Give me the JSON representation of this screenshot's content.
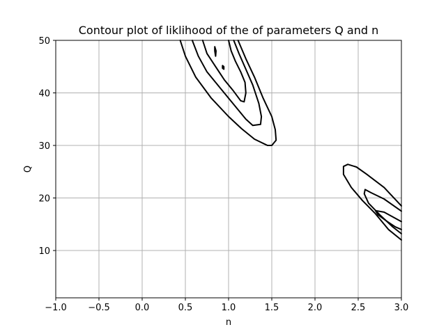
{
  "chart_data": {
    "type": "contour",
    "title": "Contour plot of liklihood of the of parameters Q and n",
    "xlabel": "n",
    "ylabel": "Q",
    "xlim": [
      -1.0,
      3.0
    ],
    "ylim": [
      1.0,
      50.0
    ],
    "xticks": [
      -1.0,
      -0.5,
      0.0,
      0.5,
      1.0,
      1.5,
      2.0,
      2.5,
      3.0
    ],
    "xtick_labels": [
      "−1.0",
      "−0.5",
      "0.0",
      "0.5",
      "1.0",
      "1.5",
      "2.0",
      "2.5",
      "3.0"
    ],
    "yticks": [
      10,
      20,
      30,
      40,
      50
    ],
    "ytick_labels": [
      "10",
      "20",
      "30",
      "40",
      "50"
    ],
    "grid": true,
    "contours": [
      {
        "closed": false,
        "points": [
          [
            0.44,
            50.0
          ],
          [
            0.5,
            47.0
          ],
          [
            0.62,
            43.0
          ],
          [
            0.8,
            39.0
          ],
          [
            1.0,
            35.5
          ],
          [
            1.15,
            33.2
          ],
          [
            1.3,
            31.2
          ],
          [
            1.45,
            30.0
          ],
          [
            1.5,
            30.0
          ],
          [
            1.55,
            31.0
          ],
          [
            1.54,
            33.0
          ],
          [
            1.5,
            35.5
          ],
          [
            1.4,
            39.0
          ],
          [
            1.3,
            43.0
          ],
          [
            1.2,
            46.5
          ],
          [
            1.11,
            50.0
          ]
        ]
      },
      {
        "closed": false,
        "points": [
          [
            0.58,
            50.0
          ],
          [
            0.65,
            47.0
          ],
          [
            0.75,
            44.0
          ],
          [
            0.9,
            41.0
          ],
          [
            1.05,
            38.0
          ],
          [
            1.2,
            35.0
          ],
          [
            1.28,
            33.8
          ],
          [
            1.37,
            34.0
          ],
          [
            1.38,
            35.5
          ],
          [
            1.35,
            38.0
          ],
          [
            1.28,
            41.5
          ],
          [
            1.2,
            44.5
          ],
          [
            1.12,
            47.5
          ],
          [
            1.06,
            50.0
          ]
        ]
      },
      {
        "closed": false,
        "points": [
          [
            0.7,
            50.0
          ],
          [
            0.75,
            47.5
          ],
          [
            0.85,
            45.0
          ],
          [
            0.95,
            42.5
          ],
          [
            1.05,
            40.5
          ],
          [
            1.14,
            38.5
          ],
          [
            1.18,
            38.3
          ],
          [
            1.2,
            40.0
          ],
          [
            1.19,
            42.0
          ],
          [
            1.14,
            44.0
          ],
          [
            1.08,
            46.0
          ],
          [
            1.03,
            48.0
          ],
          [
            1.0,
            50.0
          ]
        ]
      },
      {
        "closed": true,
        "points": [
          [
            0.84,
            48.8
          ],
          [
            0.855,
            48.0
          ],
          [
            0.85,
            47.0
          ],
          [
            0.84,
            48.0
          ]
        ]
      },
      {
        "closed": true,
        "points": [
          [
            0.93,
            45.2
          ],
          [
            0.945,
            45.0
          ],
          [
            0.945,
            44.5
          ],
          [
            0.93,
            44.7
          ]
        ]
      },
      {
        "closed": false,
        "points": [
          [
            3.0,
            18.5
          ],
          [
            2.8,
            22.0
          ],
          [
            2.6,
            24.5
          ],
          [
            2.48,
            25.9
          ],
          [
            2.38,
            26.4
          ],
          [
            2.33,
            26.0
          ],
          [
            2.33,
            24.5
          ],
          [
            2.42,
            22.0
          ],
          [
            2.55,
            19.5
          ],
          [
            2.7,
            17.0
          ],
          [
            2.85,
            14.0
          ],
          [
            3.0,
            12.0
          ]
        ]
      },
      {
        "closed": false,
        "points": [
          [
            3.0,
            17.5
          ],
          [
            2.8,
            19.8
          ],
          [
            2.65,
            21.0
          ],
          [
            2.58,
            21.6
          ],
          [
            2.57,
            20.8
          ],
          [
            2.62,
            19.0
          ],
          [
            2.75,
            16.8
          ],
          [
            2.9,
            14.5
          ],
          [
            3.0,
            13.2
          ]
        ]
      },
      {
        "closed": false,
        "points": [
          [
            3.0,
            15.5
          ],
          [
            2.8,
            17.3
          ],
          [
            2.7,
            17.6
          ],
          [
            2.73,
            16.8
          ],
          [
            2.83,
            15.6
          ],
          [
            2.93,
            14.5
          ],
          [
            3.0,
            14.0
          ]
        ]
      }
    ]
  }
}
